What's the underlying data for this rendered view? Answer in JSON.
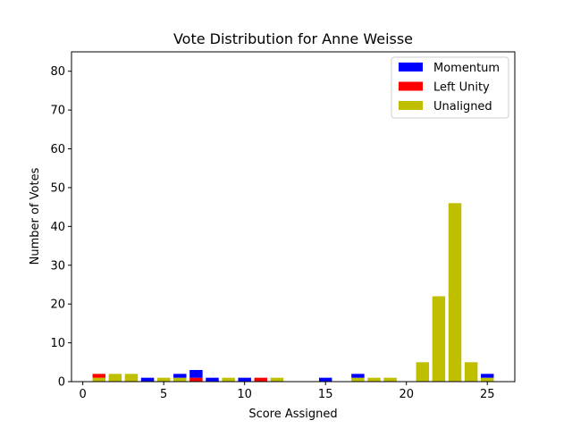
{
  "chart_data": {
    "type": "bar",
    "stacked": true,
    "title": "Vote Distribution for Anne Weisse",
    "xlabel": "Score Assigned",
    "ylabel": "Number of Votes",
    "xlim": [
      -0.7,
      26.7
    ],
    "ylim": [
      0,
      85
    ],
    "xticks": [
      0,
      5,
      10,
      15,
      20,
      25
    ],
    "yticks": [
      0,
      10,
      20,
      30,
      40,
      50,
      60,
      70,
      80
    ],
    "grid": false,
    "legend_position": "top-right",
    "x": [
      1,
      2,
      3,
      4,
      5,
      6,
      7,
      8,
      9,
      10,
      11,
      12,
      15,
      17,
      18,
      19,
      21,
      22,
      23,
      24,
      25
    ],
    "series": [
      {
        "name": "Unaligned",
        "color": "#bfbf00",
        "values": [
          1,
          2,
          2,
          0,
          1,
          1,
          0,
          0,
          1,
          0,
          0,
          1,
          0,
          1,
          1,
          1,
          5,
          22,
          46,
          5,
          1
        ]
      },
      {
        "name": "Left Unity",
        "color": "#ff0000",
        "values": [
          1,
          0,
          0,
          0,
          0,
          0,
          1,
          0,
          0,
          0,
          1,
          0,
          0,
          0,
          0,
          0,
          0,
          0,
          0,
          0,
          0
        ]
      },
      {
        "name": "Momentum",
        "color": "#0000ff",
        "values": [
          0,
          0,
          0,
          1,
          0,
          1,
          2,
          1,
          0,
          1,
          0,
          0,
          1,
          1,
          0,
          0,
          0,
          0,
          0,
          0,
          1
        ]
      }
    ],
    "legend_order": [
      "Momentum",
      "Left Unity",
      "Unaligned"
    ]
  }
}
